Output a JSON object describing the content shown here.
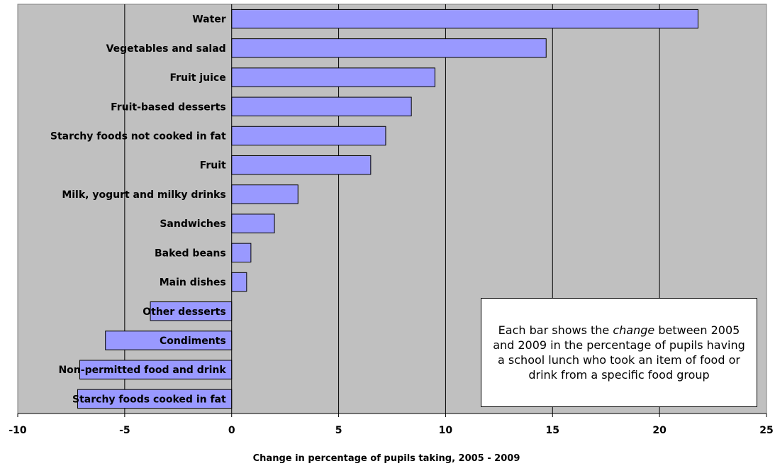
{
  "chart_data": {
    "type": "bar",
    "orientation": "horizontal",
    "categories": [
      "Water",
      "Vegetables and salad",
      "Fruit juice",
      "Fruit-based desserts",
      "Starchy foods not cooked in fat",
      "Fruit",
      "Milk, yogurt and milky drinks",
      "Sandwiches",
      "Baked beans",
      "Main dishes",
      "Other desserts",
      "Condiments",
      "Non-permitted food and drink",
      "Starchy foods cooked in fat"
    ],
    "values": [
      21.8,
      14.7,
      9.5,
      8.4,
      7.2,
      6.5,
      3.1,
      2.0,
      0.9,
      0.7,
      -3.8,
      -5.9,
      -7.1,
      -7.2
    ],
    "title": "",
    "xlabel": "Change in percentage of pupils taking, 2005 - 2009",
    "ylabel": "",
    "xlim": [
      -10,
      25
    ],
    "xticks": [
      -10,
      -5,
      0,
      5,
      10,
      15,
      20,
      25
    ],
    "grid": true,
    "legend": "none",
    "colors": {
      "bar_fill": "#9999ff",
      "bar_stroke": "#000000",
      "plot_bg": "#c0c0c0",
      "gridline": "#000000"
    },
    "annotation": {
      "parts": [
        {
          "text": "Each bar shows the ",
          "italic": false
        },
        {
          "text": "change",
          "italic": true
        },
        {
          "text": " between 2005 and 2009 in the percentage of pupils having a school lunch who took an item of food or drink from a specific food group",
          "italic": false
        }
      ]
    }
  }
}
